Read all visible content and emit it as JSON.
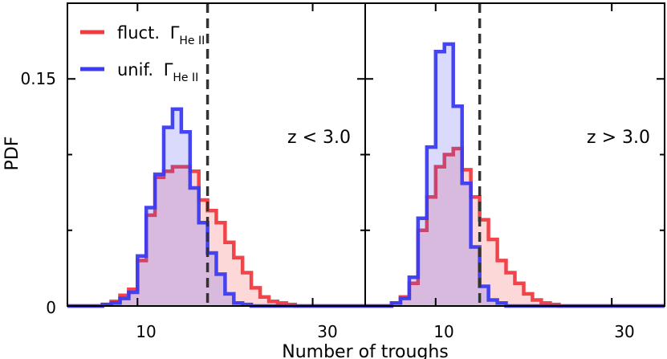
{
  "chart_data": {
    "type": "histogram",
    "ylabel": "PDF",
    "xlabel": "Number of troughs",
    "xlim": [
      2,
      36
    ],
    "ylim": [
      0,
      0.2
    ],
    "yticks": [
      {
        "value": 0,
        "label": "0"
      },
      {
        "value": 0.15,
        "label": "0.15"
      }
    ],
    "xticks": [
      {
        "value": 10,
        "label": "10"
      },
      {
        "value": 30,
        "label": "30"
      }
    ],
    "series_style": {
      "fluct": {
        "color": "#ef3b41",
        "fill": "rgba(239,59,65,0.2)"
      },
      "unif": {
        "color": "#3b3bf0",
        "fill": "rgba(70,70,240,0.2)"
      }
    },
    "legend": {
      "location": "top-left",
      "entries": [
        {
          "key": "fluct",
          "text": "fluct.",
          "symbol": "Γ",
          "subscript": "He II"
        },
        {
          "key": "unif",
          "text": "unif.",
          "symbol": "Γ",
          "subscript": "He II"
        }
      ]
    },
    "panels": [
      {
        "label": "z < 3.0",
        "vline": 18,
        "bin_start": 6,
        "bin_width": 1,
        "fluct": [
          0.001,
          0.003,
          0.007,
          0.011,
          0.03,
          0.06,
          0.085,
          0.089,
          0.092,
          0.092,
          0.089,
          0.07,
          0.063,
          0.055,
          0.042,
          0.032,
          0.022,
          0.012,
          0.006,
          0.003,
          0.002,
          0.001
        ],
        "unif": [
          0.001,
          0.002,
          0.005,
          0.009,
          0.033,
          0.065,
          0.087,
          0.118,
          0.13,
          0.115,
          0.078,
          0.055,
          0.035,
          0.021,
          0.008,
          0.002,
          0.001,
          0.0,
          0.0,
          0.0,
          0.0,
          0.0
        ]
      },
      {
        "label": "z > 3.0",
        "vline": 15,
        "bin_start": 5,
        "bin_width": 1,
        "fluct": [
          0.002,
          0.006,
          0.015,
          0.05,
          0.072,
          0.092,
          0.1,
          0.104,
          0.09,
          0.072,
          0.057,
          0.044,
          0.03,
          0.022,
          0.015,
          0.008,
          0.004,
          0.002,
          0.001
        ],
        "unif": [
          0.002,
          0.005,
          0.019,
          0.058,
          0.105,
          0.168,
          0.173,
          0.132,
          0.081,
          0.039,
          0.013,
          0.004,
          0.002,
          0.0,
          0.0,
          0.0,
          0.0,
          0.0,
          0.0
        ]
      }
    ]
  }
}
